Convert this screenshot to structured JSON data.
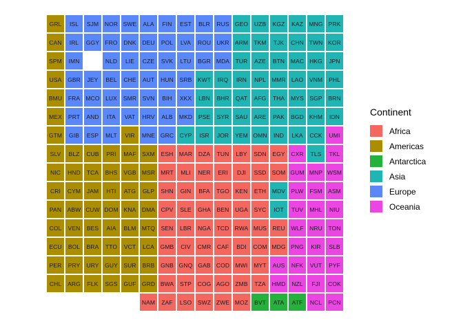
{
  "legend": {
    "title": "Continent",
    "entries": [
      {
        "label": "Africa",
        "color": "#F3675E"
      },
      {
        "label": "Americas",
        "color": "#AB8E00"
      },
      {
        "label": "Antarctica",
        "color": "#24B13C"
      },
      {
        "label": "Asia",
        "color": "#20B4B2"
      },
      {
        "label": "Europe",
        "color": "#5A88F8"
      },
      {
        "label": "Oceania",
        "color": "#EC46E2"
      }
    ]
  },
  "chart_data": {
    "type": "heatmap",
    "subtype": "tile-grid-world-map",
    "title": "",
    "legend_title": "Continent",
    "legend_position": "right",
    "grid_size": {
      "rows": 16,
      "cols": 16
    },
    "categories": [
      "Africa",
      "Americas",
      "Antarctica",
      "Asia",
      "Europe",
      "Oceania"
    ],
    "continent_colors": {
      "Africa": "#F3675E",
      "Americas": "#AB8E00",
      "Antarctica": "#24B13C",
      "Asia": "#20B4B2",
      "Europe": "#5A88F8",
      "Oceania": "#EC46E2"
    },
    "tile_text_color": "#1a1a24",
    "rows": [
      [
        [
          "GRL",
          "Americas"
        ],
        [
          "ISL",
          "Europe"
        ],
        [
          "SJM",
          "Europe"
        ],
        [
          "NOR",
          "Europe"
        ],
        [
          "SWE",
          "Europe"
        ],
        [
          "ALA",
          "Europe"
        ],
        [
          "FIN",
          "Europe"
        ],
        [
          "EST",
          "Europe"
        ],
        [
          "BLR",
          "Europe"
        ],
        [
          "RUS",
          "Europe"
        ],
        [
          "GEO",
          "Asia"
        ],
        [
          "UZB",
          "Asia"
        ],
        [
          "KGZ",
          "Asia"
        ],
        [
          "KAZ",
          "Asia"
        ],
        [
          "MNG",
          "Asia"
        ],
        [
          "PRK",
          "Asia"
        ]
      ],
      [
        [
          "CAN",
          "Americas"
        ],
        [
          "IRL",
          "Europe"
        ],
        [
          "GGY",
          "Europe"
        ],
        [
          "FRO",
          "Europe"
        ],
        [
          "DNK",
          "Europe"
        ],
        [
          "DEU",
          "Europe"
        ],
        [
          "POL",
          "Europe"
        ],
        [
          "LVA",
          "Europe"
        ],
        [
          "ROU",
          "Europe"
        ],
        [
          "UKR",
          "Europe"
        ],
        [
          "ARM",
          "Asia"
        ],
        [
          "TKM",
          "Asia"
        ],
        [
          "TJK",
          "Asia"
        ],
        [
          "CHN",
          "Asia"
        ],
        [
          "TWN",
          "Asia"
        ],
        [
          "KOR",
          "Asia"
        ]
      ],
      [
        [
          "SPM",
          "Americas"
        ],
        [
          "IMN",
          "Europe"
        ],
        null,
        [
          "NLD",
          "Europe"
        ],
        [
          "LIE",
          "Europe"
        ],
        [
          "CZE",
          "Europe"
        ],
        [
          "SVK",
          "Europe"
        ],
        [
          "LTU",
          "Europe"
        ],
        [
          "BGR",
          "Europe"
        ],
        [
          "MDA",
          "Europe"
        ],
        [
          "TUR",
          "Asia"
        ],
        [
          "AZE",
          "Asia"
        ],
        [
          "BTN",
          "Asia"
        ],
        [
          "MAC",
          "Asia"
        ],
        [
          "HKG",
          "Asia"
        ],
        [
          "JPN",
          "Asia"
        ]
      ],
      [
        [
          "USA",
          "Americas"
        ],
        [
          "GBR",
          "Europe"
        ],
        [
          "JEY",
          "Europe"
        ],
        [
          "BEL",
          "Europe"
        ],
        [
          "CHE",
          "Europe"
        ],
        [
          "AUT",
          "Europe"
        ],
        [
          "HUN",
          "Europe"
        ],
        [
          "SRB",
          "Europe"
        ],
        [
          "KWT",
          "Asia"
        ],
        [
          "IRQ",
          "Asia"
        ],
        [
          "IRN",
          "Asia"
        ],
        [
          "NPL",
          "Asia"
        ],
        [
          "MMR",
          "Asia"
        ],
        [
          "LAO",
          "Asia"
        ],
        [
          "VNM",
          "Asia"
        ],
        [
          "PHL",
          "Asia"
        ]
      ],
      [
        [
          "BMU",
          "Americas"
        ],
        [
          "FRA",
          "Europe"
        ],
        [
          "MCO",
          "Europe"
        ],
        [
          "LUX",
          "Europe"
        ],
        [
          "SMR",
          "Europe"
        ],
        [
          "SVN",
          "Europe"
        ],
        [
          "BIH",
          "Europe"
        ],
        [
          "XKX",
          "Europe"
        ],
        [
          "LBN",
          "Asia"
        ],
        [
          "BHR",
          "Asia"
        ],
        [
          "QAT",
          "Asia"
        ],
        [
          "AFG",
          "Asia"
        ],
        [
          "THA",
          "Asia"
        ],
        [
          "MYS",
          "Asia"
        ],
        [
          "SGP",
          "Asia"
        ],
        [
          "BRN",
          "Asia"
        ]
      ],
      [
        [
          "MEX",
          "Americas"
        ],
        [
          "PRT",
          "Europe"
        ],
        [
          "AND",
          "Europe"
        ],
        [
          "ITA",
          "Europe"
        ],
        [
          "VAT",
          "Europe"
        ],
        [
          "HRV",
          "Europe"
        ],
        [
          "ALB",
          "Europe"
        ],
        [
          "MKD",
          "Europe"
        ],
        [
          "PSE",
          "Asia"
        ],
        [
          "SYR",
          "Asia"
        ],
        [
          "SAU",
          "Asia"
        ],
        [
          "ARE",
          "Asia"
        ],
        [
          "PAK",
          "Asia"
        ],
        [
          "BGD",
          "Asia"
        ],
        [
          "KHM",
          "Asia"
        ],
        [
          "IDN",
          "Asia"
        ]
      ],
      [
        [
          "GTM",
          "Americas"
        ],
        [
          "GIB",
          "Europe"
        ],
        [
          "ESP",
          "Europe"
        ],
        [
          "MLT",
          "Europe"
        ],
        [
          "VIR",
          "Americas"
        ],
        [
          "MNE",
          "Europe"
        ],
        [
          "GRC",
          "Europe"
        ],
        [
          "CYP",
          "Asia"
        ],
        [
          "ISR",
          "Asia"
        ],
        [
          "JOR",
          "Asia"
        ],
        [
          "YEM",
          "Asia"
        ],
        [
          "OMN",
          "Asia"
        ],
        [
          "IND",
          "Asia"
        ],
        [
          "LKA",
          "Asia"
        ],
        [
          "CCK",
          "Asia"
        ],
        [
          "UMI",
          "Oceania"
        ]
      ],
      [
        [
          "SLV",
          "Americas"
        ],
        [
          "BLZ",
          "Americas"
        ],
        [
          "CUB",
          "Americas"
        ],
        [
          "PRI",
          "Americas"
        ],
        [
          "MAF",
          "Americas"
        ],
        [
          "SXM",
          "Americas"
        ],
        [
          "ESH",
          "Africa"
        ],
        [
          "MAR",
          "Africa"
        ],
        [
          "DZA",
          "Africa"
        ],
        [
          "TUN",
          "Africa"
        ],
        [
          "LBY",
          "Africa"
        ],
        [
          "SDN",
          "Africa"
        ],
        [
          "EGY",
          "Africa"
        ],
        [
          "CXR",
          "Oceania"
        ],
        [
          "TLS",
          "Asia"
        ],
        [
          "TKL",
          "Oceania"
        ]
      ],
      [
        [
          "NIC",
          "Americas"
        ],
        [
          "HND",
          "Americas"
        ],
        [
          "TCA",
          "Americas"
        ],
        [
          "BHS",
          "Americas"
        ],
        [
          "VGB",
          "Americas"
        ],
        [
          "MSR",
          "Americas"
        ],
        [
          "MRT",
          "Africa"
        ],
        [
          "MLI",
          "Africa"
        ],
        [
          "NER",
          "Africa"
        ],
        [
          "ERI",
          "Africa"
        ],
        [
          "DJI",
          "Africa"
        ],
        [
          "SSD",
          "Africa"
        ],
        [
          "SOM",
          "Africa"
        ],
        [
          "GUM",
          "Oceania"
        ],
        [
          "MNP",
          "Oceania"
        ],
        [
          "WSM",
          "Oceania"
        ]
      ],
      [
        [
          "CRI",
          "Americas"
        ],
        [
          "CYM",
          "Americas"
        ],
        [
          "JAM",
          "Americas"
        ],
        [
          "HTI",
          "Americas"
        ],
        [
          "ATG",
          "Americas"
        ],
        [
          "GLP",
          "Americas"
        ],
        [
          "SHN",
          "Africa"
        ],
        [
          "GIN",
          "Africa"
        ],
        [
          "BFA",
          "Africa"
        ],
        [
          "TGO",
          "Africa"
        ],
        [
          "KEN",
          "Africa"
        ],
        [
          "ETH",
          "Africa"
        ],
        [
          "MDV",
          "Asia"
        ],
        [
          "PLW",
          "Oceania"
        ],
        [
          "FSM",
          "Oceania"
        ],
        [
          "ASM",
          "Oceania"
        ]
      ],
      [
        [
          "PAN",
          "Americas"
        ],
        [
          "ABW",
          "Americas"
        ],
        [
          "CUW",
          "Americas"
        ],
        [
          "DOM",
          "Americas"
        ],
        [
          "KNA",
          "Americas"
        ],
        [
          "DMA",
          "Americas"
        ],
        [
          "CPV",
          "Africa"
        ],
        [
          "SLE",
          "Africa"
        ],
        [
          "GHA",
          "Africa"
        ],
        [
          "BEN",
          "Africa"
        ],
        [
          "UGA",
          "Africa"
        ],
        [
          "SYC",
          "Africa"
        ],
        [
          "IOT",
          "Asia"
        ],
        [
          "TUV",
          "Oceania"
        ],
        [
          "MHL",
          "Oceania"
        ],
        [
          "NIU",
          "Oceania"
        ]
      ],
      [
        [
          "COL",
          "Americas"
        ],
        [
          "VEN",
          "Americas"
        ],
        [
          "BES",
          "Americas"
        ],
        [
          "AIA",
          "Americas"
        ],
        [
          "BLM",
          "Americas"
        ],
        [
          "MTQ",
          "Americas"
        ],
        [
          "SEN",
          "Africa"
        ],
        [
          "LBR",
          "Africa"
        ],
        [
          "NGA",
          "Africa"
        ],
        [
          "TCD",
          "Africa"
        ],
        [
          "RWA",
          "Africa"
        ],
        [
          "MUS",
          "Africa"
        ],
        [
          "REU",
          "Africa"
        ],
        [
          "WLF",
          "Oceania"
        ],
        [
          "NRU",
          "Oceania"
        ],
        [
          "TON",
          "Oceania"
        ]
      ],
      [
        [
          "ECU",
          "Americas"
        ],
        [
          "BOL",
          "Americas"
        ],
        [
          "BRA",
          "Americas"
        ],
        [
          "TTO",
          "Americas"
        ],
        [
          "VCT",
          "Americas"
        ],
        [
          "LCA",
          "Americas"
        ],
        [
          "GMB",
          "Africa"
        ],
        [
          "CIV",
          "Africa"
        ],
        [
          "CMR",
          "Africa"
        ],
        [
          "CAF",
          "Africa"
        ],
        [
          "BDI",
          "Africa"
        ],
        [
          "COM",
          "Africa"
        ],
        [
          "MDG",
          "Africa"
        ],
        [
          "PNG",
          "Oceania"
        ],
        [
          "KIR",
          "Oceania"
        ],
        [
          "SLB",
          "Oceania"
        ]
      ],
      [
        [
          "PER",
          "Americas"
        ],
        [
          "PRY",
          "Americas"
        ],
        [
          "URY",
          "Americas"
        ],
        [
          "GUY",
          "Americas"
        ],
        [
          "SUR",
          "Americas"
        ],
        [
          "BRB",
          "Americas"
        ],
        [
          "GNB",
          "Africa"
        ],
        [
          "GNQ",
          "Africa"
        ],
        [
          "GAB",
          "Africa"
        ],
        [
          "COD",
          "Africa"
        ],
        [
          "MWI",
          "Africa"
        ],
        [
          "MYT",
          "Africa"
        ],
        [
          "AUS",
          "Oceania"
        ],
        [
          "NFK",
          "Oceania"
        ],
        [
          "VUT",
          "Oceania"
        ],
        [
          "PYF",
          "Oceania"
        ]
      ],
      [
        [
          "CHL",
          "Americas"
        ],
        [
          "ARG",
          "Americas"
        ],
        [
          "FLK",
          "Americas"
        ],
        [
          "SGS",
          "Americas"
        ],
        [
          "GUF",
          "Americas"
        ],
        [
          "GRD",
          "Americas"
        ],
        [
          "BWA",
          "Africa"
        ],
        [
          "STP",
          "Africa"
        ],
        [
          "COG",
          "Africa"
        ],
        [
          "AGO",
          "Africa"
        ],
        [
          "ZMB",
          "Africa"
        ],
        [
          "TZA",
          "Africa"
        ],
        [
          "HMD",
          "Oceania"
        ],
        [
          "NZL",
          "Oceania"
        ],
        [
          "FJI",
          "Oceania"
        ],
        [
          "COK",
          "Oceania"
        ]
      ],
      [
        null,
        null,
        null,
        null,
        null,
        [
          "NAM",
          "Africa"
        ],
        [
          "ZAF",
          "Africa"
        ],
        [
          "LSO",
          "Africa"
        ],
        [
          "SWZ",
          "Africa"
        ],
        [
          "ZWE",
          "Africa"
        ],
        [
          "MOZ",
          "Africa"
        ],
        [
          "BVT",
          "Antarctica"
        ],
        [
          "ATA",
          "Antarctica"
        ],
        [
          "ATF",
          "Antarctica"
        ],
        [
          "NCL",
          "Oceania"
        ],
        [
          "PCN",
          "Oceania"
        ]
      ]
    ]
  }
}
